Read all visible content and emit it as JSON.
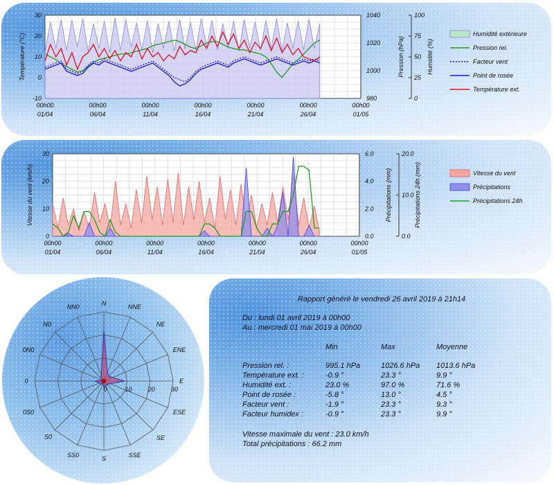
{
  "chart_data": [
    {
      "type": "line",
      "x_ticks": [
        "00h00\n01/04",
        "00h00\n06/04",
        "00h00\n11/04",
        "00h00\n16/04",
        "00h00\n21/04",
        "00h00\n26/04",
        "00h00\n01/05"
      ],
      "y_left": {
        "label": "Température (°C)",
        "ticks": [
          "-10",
          "0",
          "10",
          "20",
          "30"
        ],
        "range": [
          -10,
          30
        ]
      },
      "y_right1": {
        "label": "Pression (hPa)",
        "ticks": [
          "980",
          "1000",
          "1020",
          "1040"
        ],
        "range": [
          980,
          1040
        ]
      },
      "y_right2": {
        "label": "Humidité (%)",
        "ticks": [
          "0",
          "25",
          "50",
          "75",
          "100"
        ],
        "range": [
          0,
          100
        ]
      },
      "series": [
        {
          "name": "Humidité extérieure",
          "color": "#8888dd",
          "fill": "#c8c8f0",
          "axis": "humidity",
          "values": [
            55,
            92,
            60,
            95,
            58,
            94,
            62,
            96,
            57,
            90,
            60,
            93,
            55,
            97,
            58,
            95,
            62,
            91,
            58,
            94,
            55,
            90,
            60,
            93,
            57,
            95,
            60,
            92,
            58,
            96,
            62,
            94,
            58,
            90,
            60,
            93,
            57,
            95,
            60,
            92,
            58,
            94,
            60,
            96,
            57,
            91,
            60,
            93,
            58,
            95,
            60,
            90
          ]
        },
        {
          "name": "Pression rel.",
          "color": "#229922",
          "axis": "pressure",
          "values": [
            1012,
            1010,
            1008,
            1005,
            1003,
            1001,
            999,
            1000,
            1003,
            1006,
            1008,
            1009,
            1010,
            1011,
            1012,
            1012,
            1013,
            1014,
            1015,
            1016,
            1018,
            1019,
            1020,
            1021,
            1022,
            1021,
            1019,
            1017,
            1016,
            1018,
            1020,
            1021,
            1021,
            1019,
            1017,
            1016,
            1015,
            1015,
            1014,
            1013,
            1012,
            1010,
            1005,
            999,
            995,
            1000,
            1005,
            1008,
            1012,
            1016,
            1020,
            1022
          ]
        },
        {
          "name": "Facteur vent",
          "color": "#1a1acc",
          "dashed": true,
          "axis": "temp",
          "values": [
            5,
            6,
            7,
            8,
            4,
            3,
            2,
            3,
            6,
            8,
            7,
            9,
            8,
            7,
            6,
            5,
            4,
            5,
            6,
            7,
            8,
            6,
            4,
            2,
            0,
            -1,
            -2,
            0,
            3,
            5,
            6,
            7,
            8,
            7,
            6,
            8,
            9,
            10,
            9,
            8,
            7,
            8,
            9,
            10,
            9,
            8,
            7,
            8,
            9,
            8,
            9,
            8
          ]
        },
        {
          "name": "Point de rosée",
          "color": "#1a1acc",
          "axis": "temp",
          "values": [
            4,
            5,
            6,
            7,
            3,
            2,
            1,
            2,
            5,
            7,
            6,
            8,
            7,
            6,
            5,
            4,
            3,
            4,
            5,
            6,
            7,
            5,
            3,
            1,
            -2,
            -4,
            -3,
            -1,
            2,
            4,
            5,
            6,
            7,
            6,
            5,
            7,
            8,
            9,
            8,
            7,
            6,
            7,
            8,
            9,
            8,
            7,
            6,
            7,
            8,
            7,
            8,
            7
          ]
        },
        {
          "name": "Température ext.",
          "color": "#dd1122",
          "axis": "temp",
          "values": [
            8,
            16,
            10,
            14,
            6,
            12,
            4,
            10,
            12,
            16,
            10,
            14,
            9,
            13,
            8,
            12,
            10,
            16,
            9,
            14,
            10,
            12,
            8,
            11,
            9,
            15,
            11,
            13,
            12,
            18,
            14,
            20,
            15,
            22,
            16,
            21,
            14,
            18,
            12,
            17,
            14,
            20,
            13,
            19,
            12,
            16,
            11,
            14,
            10,
            9,
            8,
            10
          ]
        }
      ]
    },
    {
      "type": "area",
      "x_ticks": [
        "00h00\n01/04",
        "00h00\n06/04",
        "00h00\n11/04",
        "00h00\n16/04",
        "00h00\n21/04",
        "00h00\n26/04",
        "00h00\n01/05"
      ],
      "y_left": {
        "label": "Vitesse du vent (km/h)",
        "ticks": [
          "0",
          "10",
          "20",
          "30"
        ],
        "range": [
          0,
          30
        ]
      },
      "y_right1": {
        "label": "Précipitations (mm)",
        "ticks": [
          "0.0",
          "2.0",
          "4.0",
          "6.0"
        ],
        "range": [
          0,
          6
        ]
      },
      "y_right2": {
        "label": "Précipitations 24h (mm)",
        "ticks": [
          "0.0",
          "10.0",
          "20.0"
        ],
        "range": [
          0,
          20
        ]
      },
      "series": [
        {
          "name": "Vitesse du vent",
          "color": "#e06666",
          "fill": "#f4a7a0",
          "axis": "wind",
          "values": [
            12,
            3,
            14,
            4,
            10,
            2,
            9,
            3,
            16,
            5,
            12,
            3,
            20,
            4,
            12,
            3,
            17,
            5,
            22,
            6,
            18,
            4,
            21,
            5,
            23,
            4,
            18,
            6,
            20,
            5,
            14,
            3,
            22,
            6,
            17,
            4,
            19,
            5,
            15,
            3,
            12,
            4,
            16,
            5,
            18,
            6,
            23,
            4,
            14,
            3,
            11,
            2
          ]
        },
        {
          "name": "Précipitations",
          "color": "#4444dd",
          "fill": "#8f8fee",
          "axis": "rain",
          "values": [
            0,
            0,
            0,
            0.2,
            0,
            0,
            0,
            1,
            0,
            0,
            0,
            0.6,
            0,
            0,
            0,
            0,
            0,
            0,
            0,
            0,
            0,
            0,
            0,
            0,
            0,
            0,
            0,
            0,
            0,
            0.4,
            0,
            0,
            0,
            0,
            0,
            0,
            0,
            5,
            0,
            0,
            0,
            0.6,
            0,
            0.8,
            3.2,
            0,
            5.8,
            0,
            0,
            0.8,
            0,
            0
          ]
        },
        {
          "name": "Précipitations 24h",
          "color": "#229922",
          "axis": "rain24",
          "values": [
            3,
            2,
            0,
            1,
            5,
            2,
            6,
            6,
            4,
            1,
            0,
            4,
            1,
            0,
            0,
            0,
            0,
            0,
            0,
            0,
            0,
            0,
            0,
            0,
            0,
            0,
            0,
            0,
            0,
            3,
            3,
            2,
            0,
            0,
            0,
            0,
            0,
            6,
            6,
            2,
            0,
            0,
            3,
            3,
            6,
            6,
            10,
            17,
            17,
            16,
            2,
            2
          ]
        }
      ]
    },
    {
      "type": "radar",
      "directions": [
        "N",
        "NNE",
        "NE",
        "ENE",
        "E",
        "ESE",
        "SE",
        "SSE",
        "S",
        "SS0",
        "S0",
        "0S0",
        "0",
        "0N0",
        "N0",
        "NN0"
      ],
      "ring_labels": [
        "0",
        "10",
        "20",
        "30"
      ],
      "range": [
        0,
        30
      ],
      "values": [
        22,
        4,
        3,
        4,
        9,
        3,
        2,
        2,
        3,
        1,
        2,
        2,
        4,
        1,
        2,
        3
      ],
      "fill": "#cc3366"
    }
  ],
  "legend1": {
    "humidity": "Humidité extérieure",
    "pressure": "Pression rel.",
    "windchill": "Facteur vent",
    "dewpoint": "Point de rosée",
    "temp": "Température ext."
  },
  "legend2": {
    "wind": "Vitesse du vent",
    "rain": "Précipitations",
    "rain24": "Précipitations 24h"
  },
  "report": {
    "title": "Rapport généré le vendredi 26 avril 2019 à 21h14",
    "from": "Du : lundi 01 avril 2019 à 00h00",
    "to": "Au : mercredi 01 mai 2019 à 00h00",
    "col_min": "Min",
    "col_max": "Max",
    "col_avg": "Moyenne",
    "rows": [
      {
        "label": "Pression rel. :",
        "min": "995.1 hPa",
        "max": "1026.6 hPa",
        "avg": "1013.6 hPa"
      },
      {
        "label": "Température ext. :",
        "min": "-0.9 °",
        "max": "23.3 °",
        "avg": "9.9 °"
      },
      {
        "label": "Humidité ext. :",
        "min": "23.0 %",
        "max": "97.0 %",
        "avg": "71.6 %"
      },
      {
        "label": "Point de rosée :",
        "min": "-5.8 °",
        "max": "13.0 °",
        "avg": "4.5 °"
      },
      {
        "label": "Facteur vent :",
        "min": "-1.9 °",
        "max": "23.3 °",
        "avg": "9.3 °"
      },
      {
        "label": "Facteur humidex :",
        "min": "-0.9 °",
        "max": "23.3 °",
        "avg": "9.9 °"
      }
    ],
    "max_wind": "Vitesse maximale du vent : 23.0 km/h",
    "total_rain": "Total précipitations : 66.2 mm"
  }
}
